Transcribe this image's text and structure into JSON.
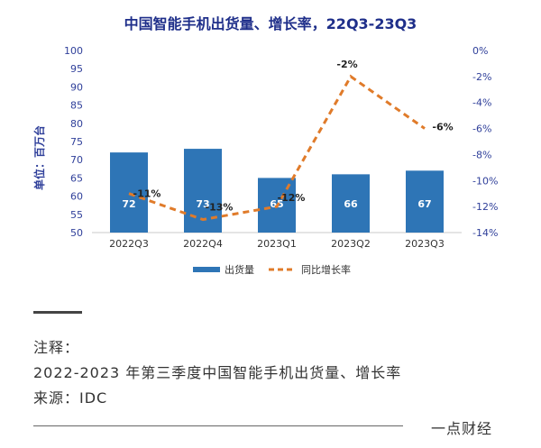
{
  "chart_data": {
    "type": "bar",
    "title": "中国智能手机出货量、增长率，22Q3-23Q3",
    "ylabel": "单位：百万台",
    "categories": [
      "2022Q3",
      "2022Q4",
      "2023Q1",
      "2023Q2",
      "2023Q3"
    ],
    "ylim": [
      50,
      100
    ],
    "yticks": [
      "100",
      "95",
      "90",
      "85",
      "80",
      "75",
      "70",
      "65",
      "60",
      "55",
      "50"
    ],
    "y2lim": [
      -14,
      0
    ],
    "y2ticks": [
      "0%",
      "-2%",
      "-4%",
      "-6%",
      "-8%",
      "-10%",
      "-12%",
      "-14%"
    ],
    "series": [
      {
        "name": "出货量",
        "type": "bar",
        "values": [
          72,
          73,
          65,
          66,
          67
        ],
        "labels": [
          "72",
          "73",
          "65",
          "66",
          "67"
        ],
        "color": "#2e75b6"
      },
      {
        "name": "同比增长率",
        "type": "line",
        "axis": "right",
        "values": [
          -11,
          -13,
          -12,
          -2,
          -6
        ],
        "labels": [
          "-11%",
          "-13%",
          "-12%",
          "-2%",
          "-6%"
        ],
        "color": "#e07b2a"
      }
    ],
    "legend_position": "bottom",
    "grid": false
  },
  "notes": {
    "label": "注释：",
    "line1": "2022-2023 年第三季度中国智能手机出货量、增长率",
    "source": "来源：IDC"
  },
  "brand": "一点财经"
}
